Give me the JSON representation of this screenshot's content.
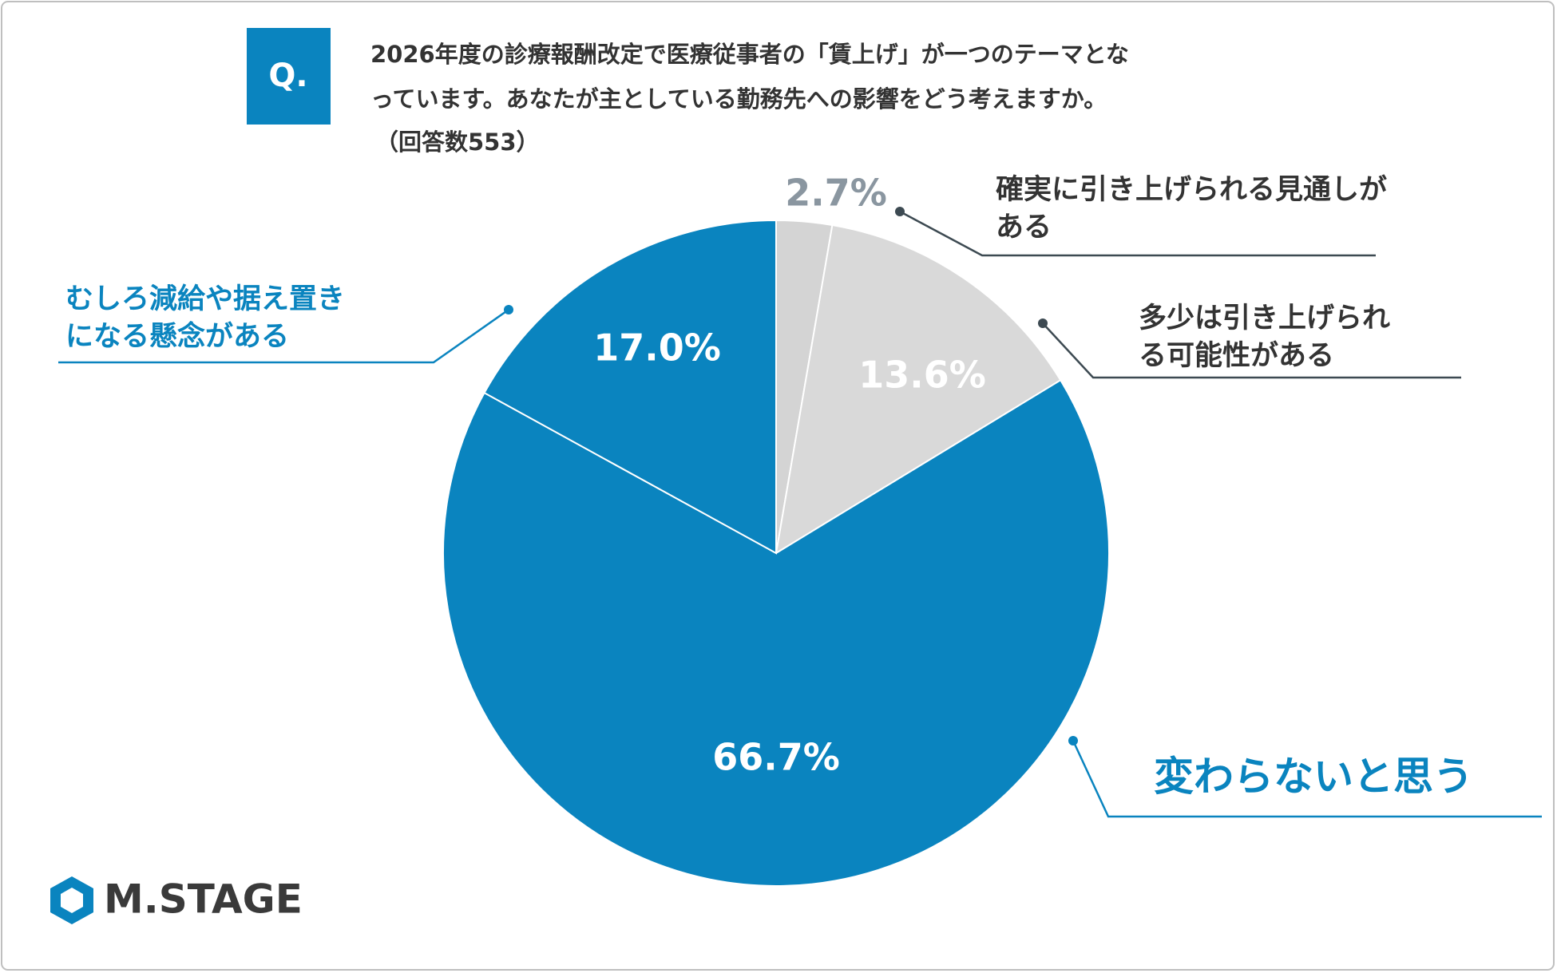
{
  "badge": "Q.",
  "title_lines": [
    "2026年度の診療報酬改定で医療従事者の「賃上げ」が一つのテーマとな",
    "っています。あなたが主としている勤務先への影響をどう考えますか。"
  ],
  "subtitle": "（回答数553）",
  "logo": "M.STAGE",
  "chart_data": {
    "type": "pie",
    "categories": [
      "確実に引き上げられる見通しがある",
      "多少は引き上げられる可能性がある",
      "変わらないと思う",
      "むしろ減給や据え置きになる懸念がある"
    ],
    "values": [
      2.7,
      13.6,
      66.7,
      17.0
    ],
    "value_labels": [
      "2.7%",
      "13.6%",
      "66.7%",
      "17.0%"
    ],
    "colors": [
      "#d4d4d4",
      "#d9d9d9",
      "#0a84bf",
      "#0a84bf"
    ],
    "value_label_colors": [
      "#8a96a0",
      "#ffffff",
      "#ffffff",
      "#ffffff"
    ],
    "label_colors": [
      "#333333",
      "#333333",
      "#0a84bf",
      "#0a84bf"
    ]
  }
}
